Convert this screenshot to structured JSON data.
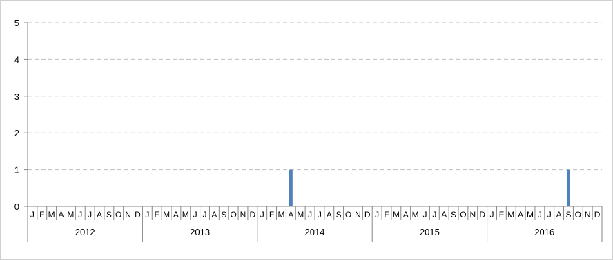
{
  "chart_data": {
    "type": "bar",
    "title": "",
    "xlabel": "",
    "ylabel": "",
    "ylim": [
      0,
      5
    ],
    "yticks": [
      0,
      1,
      2,
      3,
      4,
      5
    ],
    "grid": "horizontal dashed",
    "legend": "none",
    "bar_color": "#4f81bd",
    "years": [
      "2012",
      "2013",
      "2014",
      "2015",
      "2016"
    ],
    "month_labels": [
      "J",
      "F",
      "M",
      "A",
      "M",
      "J",
      "J",
      "A",
      "S",
      "O",
      "N",
      "D"
    ],
    "series": [
      {
        "values": [
          0,
          0,
          0,
          0,
          0,
          0,
          0,
          0,
          0,
          0,
          0,
          0,
          0,
          0,
          0,
          0,
          0,
          0,
          0,
          0,
          0,
          0,
          0,
          0,
          0,
          0,
          0,
          1,
          0,
          0,
          0,
          0,
          0,
          0,
          0,
          0,
          0,
          0,
          0,
          0,
          0,
          0,
          0,
          0,
          0,
          0,
          0,
          0,
          0,
          0,
          0,
          0,
          0,
          0,
          0,
          0,
          1,
          0,
          0,
          0
        ]
      }
    ]
  }
}
